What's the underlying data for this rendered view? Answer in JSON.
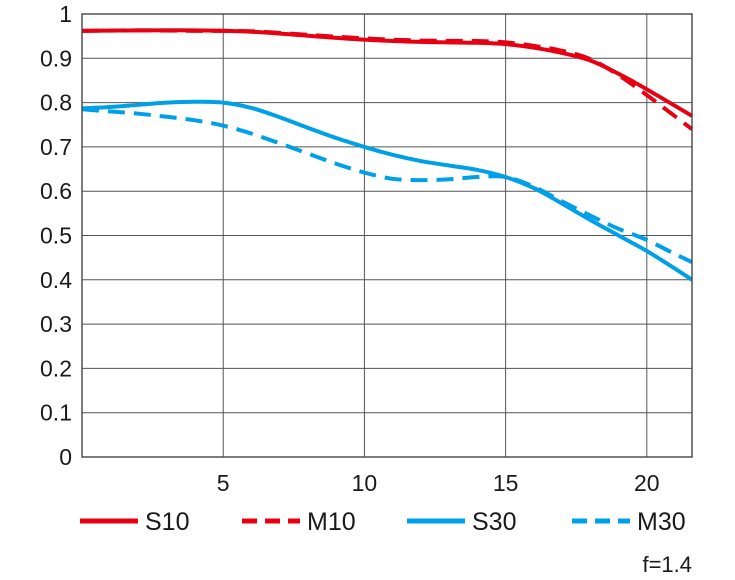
{
  "chart_data": {
    "type": "line",
    "title": "",
    "xlabel": "",
    "ylabel": "",
    "xlim": [
      0,
      21.6
    ],
    "ylim": [
      0,
      1
    ],
    "grid": true,
    "x_ticks": [
      5,
      10,
      15,
      20
    ],
    "x_tick_labels": [
      "5",
      "10",
      "15",
      "20"
    ],
    "y_ticks": [
      0,
      0.1,
      0.2,
      0.3,
      0.4,
      0.5,
      0.6,
      0.7,
      0.8,
      0.9,
      1
    ],
    "y_tick_labels": [
      "0",
      "0.1",
      "0.2",
      "0.3",
      "0.4",
      "0.5",
      "0.6",
      "0.7",
      "0.8",
      "0.9",
      "1"
    ],
    "legend_position": "bottom",
    "series": [
      {
        "name": "S10",
        "color": "#e60012",
        "style": "solid",
        "x": [
          0,
          2,
          4,
          6,
          8,
          10,
          12,
          14,
          15,
          16,
          17,
          18,
          19,
          20,
          21.6
        ],
        "y": [
          0.962,
          0.963,
          0.963,
          0.96,
          0.951,
          0.942,
          0.937,
          0.935,
          0.932,
          0.924,
          0.912,
          0.895,
          0.865,
          0.83,
          0.77
        ]
      },
      {
        "name": "M10",
        "color": "#e60012",
        "style": "dashed",
        "x": [
          0,
          2,
          4,
          6,
          8,
          10,
          12,
          14,
          15,
          16,
          17,
          18,
          19,
          20,
          21.6
        ],
        "y": [
          0.962,
          0.963,
          0.962,
          0.961,
          0.953,
          0.945,
          0.94,
          0.939,
          0.936,
          0.928,
          0.917,
          0.898,
          0.862,
          0.817,
          0.74
        ]
      },
      {
        "name": "S30",
        "color": "#00a0e9",
        "style": "solid",
        "x": [
          0,
          1,
          2,
          3,
          4,
          5,
          6,
          7,
          8,
          9,
          10,
          11,
          12,
          13,
          14,
          15,
          16,
          17,
          18,
          19,
          20,
          21,
          21.6
        ],
        "y": [
          0.787,
          0.79,
          0.795,
          0.8,
          0.802,
          0.8,
          0.788,
          0.767,
          0.743,
          0.72,
          0.7,
          0.682,
          0.668,
          0.658,
          0.648,
          0.632,
          0.607,
          0.572,
          0.535,
          0.5,
          0.465,
          0.425,
          0.4
        ]
      },
      {
        "name": "M30",
        "color": "#00a0e9",
        "style": "dashed",
        "x": [
          0,
          1,
          2,
          3,
          4,
          5,
          6,
          7,
          8,
          9,
          10,
          11,
          12,
          13,
          14,
          15,
          16,
          17,
          18,
          19,
          20,
          21,
          21.6
        ],
        "y": [
          0.785,
          0.78,
          0.775,
          0.768,
          0.76,
          0.748,
          0.73,
          0.708,
          0.685,
          0.662,
          0.642,
          0.628,
          0.625,
          0.627,
          0.632,
          0.632,
          0.61,
          0.577,
          0.545,
          0.515,
          0.49,
          0.458,
          0.44
        ]
      }
    ],
    "annotation": "f=1.4"
  }
}
